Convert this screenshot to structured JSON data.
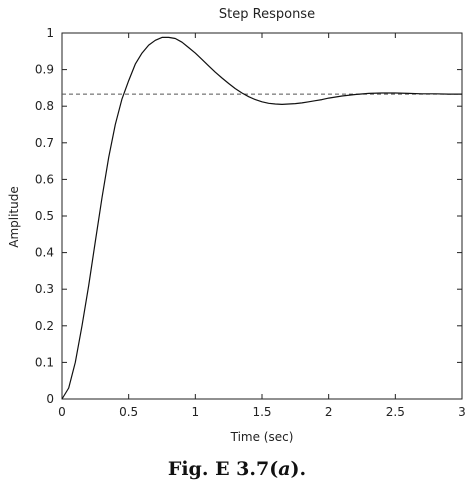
{
  "chart_data": {
    "type": "line",
    "title": "Step Response",
    "xlabel": "Time (sec)",
    "ylabel": "Amplitude",
    "xlim": [
      0,
      3
    ],
    "ylim": [
      0,
      1
    ],
    "xticks": [
      "0",
      "0.5",
      "1",
      "1.5",
      "2",
      "2.5",
      "3"
    ],
    "yticks": [
      "0",
      "0.1",
      "0.2",
      "0.3",
      "0.4",
      "0.5",
      "0.6",
      "0.7",
      "0.8",
      "0.9",
      "1"
    ],
    "grid": false,
    "series": [
      {
        "x": [
          0,
          0.05,
          0.1,
          0.15,
          0.2,
          0.25,
          0.3,
          0.35,
          0.4,
          0.45,
          0.5,
          0.55,
          0.6,
          0.65,
          0.7,
          0.75,
          0.8,
          0.85,
          0.9,
          0.95,
          1.0,
          1.05,
          1.1,
          1.15,
          1.2,
          1.25,
          1.3,
          1.35,
          1.4,
          1.45,
          1.5,
          1.55,
          1.6,
          1.65,
          1.7,
          1.75,
          1.8,
          1.85,
          1.9,
          1.95,
          2.0,
          2.1,
          2.2,
          2.3,
          2.4,
          2.5,
          2.6,
          2.7,
          2.8,
          2.9,
          3.0
        ],
        "y": [
          0,
          0.03,
          0.1,
          0.2,
          0.31,
          0.43,
          0.55,
          0.66,
          0.75,
          0.82,
          0.87,
          0.915,
          0.945,
          0.967,
          0.98,
          0.988,
          0.988,
          0.985,
          0.975,
          0.96,
          0.945,
          0.928,
          0.91,
          0.893,
          0.877,
          0.862,
          0.848,
          0.836,
          0.826,
          0.818,
          0.812,
          0.808,
          0.806,
          0.805,
          0.806,
          0.807,
          0.809,
          0.812,
          0.815,
          0.818,
          0.822,
          0.828,
          0.832,
          0.835,
          0.836,
          0.836,
          0.835,
          0.834,
          0.834,
          0.833,
          0.833
        ]
      }
    ],
    "reference_line": {
      "y": 0.833,
      "style": "dashed"
    }
  },
  "caption": {
    "prefix": "Fig. E 3.7(",
    "italic": "a",
    "suffix": ")."
  }
}
